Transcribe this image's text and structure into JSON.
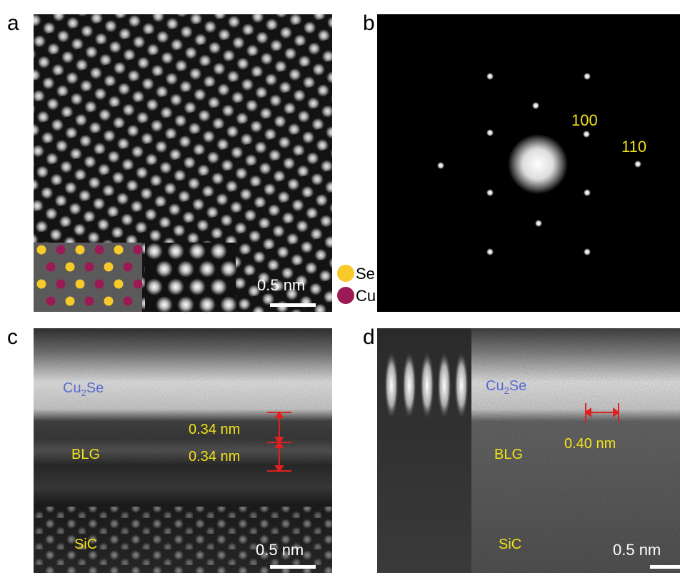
{
  "panels": {
    "a": {
      "label": "a",
      "scale_bar": "0.5 nm",
      "legend": [
        "Se",
        "Cu"
      ]
    },
    "b": {
      "label": "b",
      "spots": [
        "100",
        "110"
      ]
    },
    "c": {
      "label": "c",
      "layers": {
        "top": [
          "Cu",
          "2",
          "Se"
        ],
        "middle": "BLG",
        "bottom": "SiC"
      },
      "spacings": [
        "0.34 nm",
        "0.34 nm"
      ],
      "scale_bar": "0.5 nm"
    },
    "d": {
      "label": "d",
      "layers": {
        "top": [
          "Cu",
          "2",
          "Se"
        ],
        "middle": "BLG",
        "bottom": "SiC"
      },
      "spacing": "0.40 nm",
      "scale_bar": "0.5 nm"
    }
  }
}
